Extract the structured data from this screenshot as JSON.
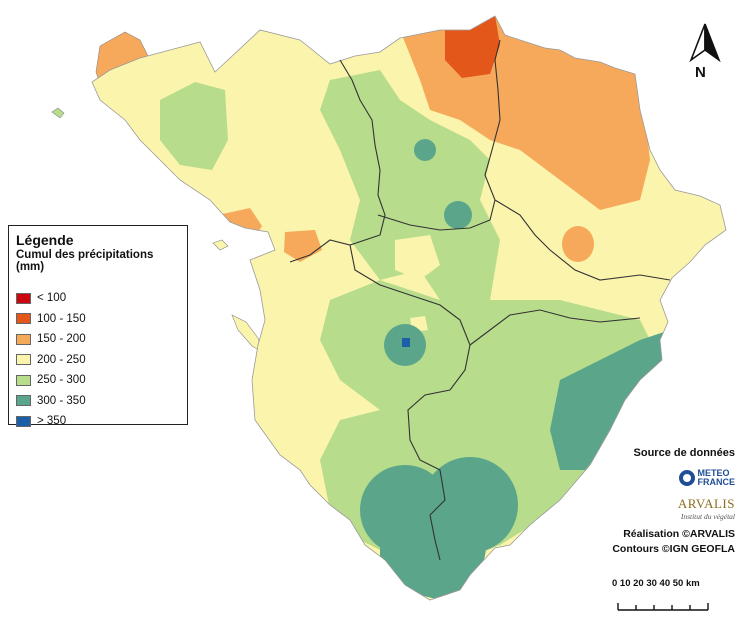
{
  "legend": {
    "title": "Légende",
    "subtitle": "Cumul des précipitations (mm)",
    "items": [
      {
        "label": "< 100",
        "color": "#c9090f"
      },
      {
        "label": "100 - 150",
        "color": "#e4571b"
      },
      {
        "label": "150 - 200",
        "color": "#f6a95a"
      },
      {
        "label": "200 - 250",
        "color": "#fbf4ad"
      },
      {
        "label": "250 - 300",
        "color": "#b7dc8c"
      },
      {
        "label": "300 - 350",
        "color": "#5ba58a"
      },
      {
        "label": "> 350",
        "color": "#1c5ea8"
      }
    ]
  },
  "north_arrow": {
    "letter": "N",
    "icon": "north-arrow-icon"
  },
  "credits": {
    "source_title": "Source de données",
    "meteo_line1": "METEO",
    "meteo_line2": "FRANCE",
    "arvalis_name": "ARVALIS",
    "arvalis_tagline": "Institut du végétal",
    "realisation": "Réalisation ©ARVALIS",
    "contours": "Contours ©IGN GEOFLA"
  },
  "scale": {
    "labels": "0 10 20 30 40 50 km",
    "max_km": 50
  }
}
